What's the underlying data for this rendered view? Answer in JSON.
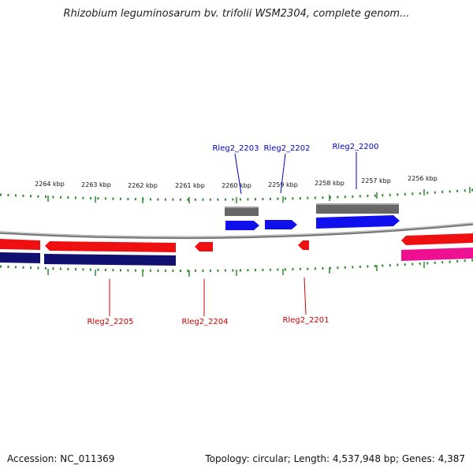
{
  "title": "Rhizobium leguminosarum bv. trifolii WSM2304, complete genom...",
  "accession_label": "Accession: NC_011369",
  "summary_label": "Topology: circular; Length: 4,537,948 bp; Genes: 4,387",
  "colors": {
    "tick": "#2e8b2e",
    "backbone": "#7a7a7a",
    "gene_forward": "#1010ee",
    "gene_forward_gray": "#666666",
    "gene_reverse": "#ee1010",
    "gene_reverse_navy": "#101070",
    "gene_magenta": "#ee1090",
    "label_blue": "#0000cc",
    "label_red": "#cc0000"
  },
  "kbp_labels": [
    "2264 kbp",
    "2263 kbp",
    "2262 kbp",
    "2261 kbp",
    "2260 kbp",
    "2259 kbp",
    "2258 kbp",
    "2257 kbp",
    "2256 kbp"
  ],
  "genes_top": [
    "Rleg2_2203",
    "Rleg2_2202",
    "Rleg2_2200"
  ],
  "genes_bottom": [
    "Rleg2_2205",
    "Rleg2_2204",
    "Rleg2_2201"
  ]
}
